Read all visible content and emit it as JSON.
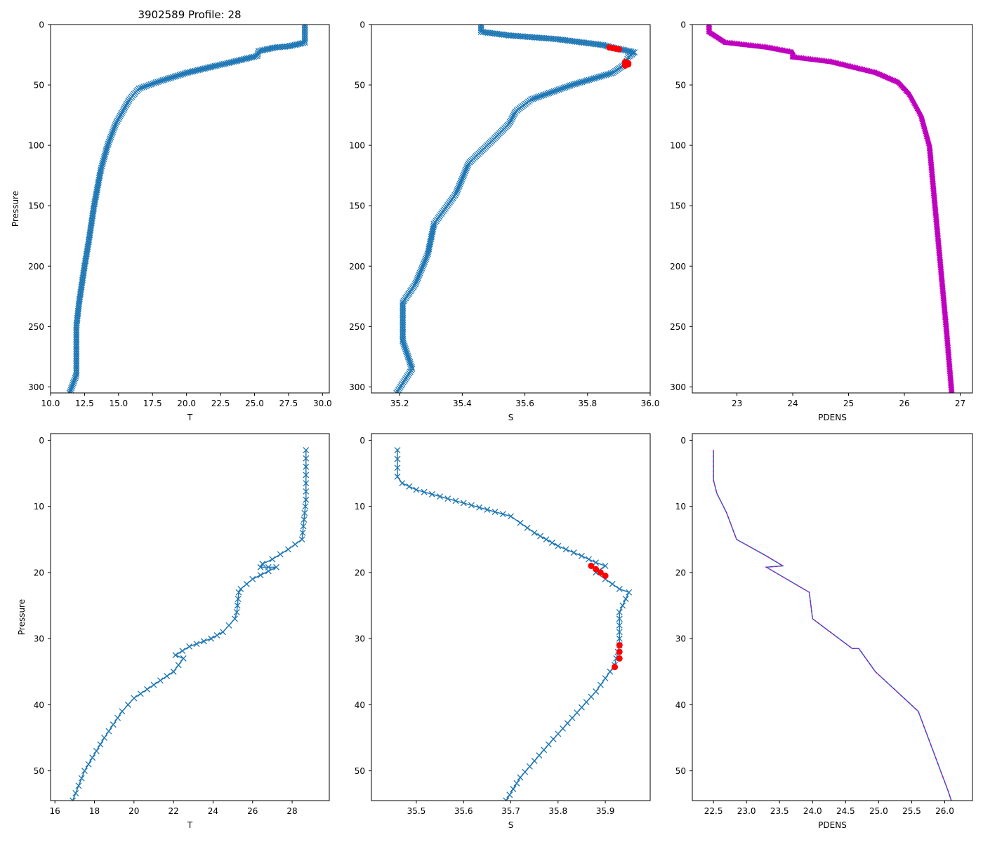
{
  "figure_title": "3902589 Profile: 28",
  "colors": {
    "line": "#1f77b4",
    "flag": "#ff0000",
    "density": "#bf00bf"
  },
  "chart_data": [
    {
      "id": "top-temperature",
      "type": "line",
      "xlabel": "T",
      "ylabel": "Pressure",
      "xlim": [
        10.0,
        30.5
      ],
      "ylim": [
        305,
        0
      ],
      "xticks": [
        10.0,
        12.5,
        15.0,
        17.5,
        20.0,
        22.5,
        25.0,
        27.5,
        30.0
      ],
      "xtick_labels": [
        "10.0",
        "12.5",
        "15.0",
        "17.5",
        "20.0",
        "22.5",
        "25.0",
        "27.5",
        "30.0"
      ],
      "yticks": [
        0,
        50,
        100,
        150,
        200,
        250,
        300
      ],
      "ytick_labels": [
        "0",
        "50",
        "100",
        "150",
        "200",
        "250",
        "300"
      ],
      "series": [
        {
          "name": "T",
          "marker": "x",
          "dense": true,
          "points": [
            [
              28.7,
              0
            ],
            [
              28.7,
              15
            ],
            [
              27.5,
              18
            ],
            [
              26.5,
              19
            ],
            [
              25.3,
              22
            ],
            [
              25.2,
              26
            ],
            [
              23.0,
              32
            ],
            [
              22.2,
              34
            ],
            [
              20.0,
              40
            ],
            [
              18.0,
              47
            ],
            [
              16.5,
              53
            ],
            [
              15.8,
              62
            ],
            [
              15.3,
              72
            ],
            [
              14.8,
              82
            ],
            [
              14.2,
              100
            ],
            [
              13.7,
              120
            ],
            [
              13.2,
              150
            ],
            [
              12.8,
              180
            ],
            [
              12.5,
              200
            ],
            [
              12.1,
              230
            ],
            [
              11.9,
              250
            ],
            [
              11.9,
              290
            ],
            [
              11.4,
              305
            ]
          ]
        }
      ]
    },
    {
      "id": "top-salinity",
      "type": "line",
      "xlabel": "S",
      "ylabel": "",
      "xlim": [
        35.11,
        36.0
      ],
      "ylim": [
        305,
        0
      ],
      "xticks": [
        35.2,
        35.4,
        35.6,
        35.8,
        36.0
      ],
      "xtick_labels": [
        "35.2",
        "35.4",
        "35.6",
        "35.8",
        "36.0"
      ],
      "yticks": [
        0,
        50,
        100,
        150,
        200,
        250,
        300
      ],
      "ytick_labels": [
        "0",
        "50",
        "100",
        "150",
        "200",
        "250",
        "300"
      ],
      "series": [
        {
          "name": "S",
          "marker": "x",
          "dense": true,
          "points": [
            [
              35.46,
              0
            ],
            [
              35.46,
              6
            ],
            [
              35.55,
              9
            ],
            [
              35.7,
              12
            ],
            [
              35.85,
              17
            ],
            [
              35.88,
              19
            ],
            [
              35.95,
              23
            ],
            [
              35.93,
              27
            ],
            [
              35.92,
              33
            ],
            [
              35.88,
              40
            ],
            [
              35.75,
              50
            ],
            [
              35.62,
              62
            ],
            [
              35.57,
              72
            ],
            [
              35.55,
              82
            ],
            [
              35.5,
              95
            ],
            [
              35.42,
              115
            ],
            [
              35.38,
              140
            ],
            [
              35.31,
              165
            ],
            [
              35.29,
              190
            ],
            [
              35.25,
              215
            ],
            [
              35.21,
              230
            ],
            [
              35.21,
              262
            ],
            [
              35.24,
              285
            ],
            [
              35.19,
              305
            ]
          ]
        },
        {
          "name": "flagged",
          "marker": "o",
          "color_key": "flag",
          "points": [
            [
              35.87,
              19
            ],
            [
              35.88,
              19.5
            ],
            [
              35.89,
              20
            ],
            [
              35.9,
              20.5
            ],
            [
              35.92,
              31
            ],
            [
              35.93,
              32
            ],
            [
              35.93,
              33
            ],
            [
              35.92,
              34
            ]
          ]
        }
      ]
    },
    {
      "id": "top-density",
      "type": "line",
      "xlabel": "PDENS",
      "ylabel": "",
      "xlim": [
        22.2,
        27.22
      ],
      "ylim": [
        305,
        0
      ],
      "xticks": [
        23,
        24,
        25,
        26,
        27
      ],
      "xtick_labels": [
        "23",
        "24",
        "25",
        "26",
        "27"
      ],
      "yticks": [
        0,
        50,
        100,
        150,
        200,
        250,
        300
      ],
      "ytick_labels": [
        "0",
        "50",
        "100",
        "150",
        "200",
        "250",
        "300"
      ],
      "series": [
        {
          "name": "PDENS",
          "marker": "^",
          "color_key": "density",
          "dense": true,
          "points": [
            [
              22.5,
              0
            ],
            [
              22.5,
              6
            ],
            [
              22.6,
              9
            ],
            [
              22.8,
              15
            ],
            [
              23.55,
              19
            ],
            [
              24.0,
              23
            ],
            [
              24.0,
              27
            ],
            [
              24.7,
              31
            ],
            [
              25.5,
              40
            ],
            [
              25.9,
              48
            ],
            [
              26.1,
              58
            ],
            [
              26.3,
              75
            ],
            [
              26.45,
              100
            ],
            [
              26.55,
              150
            ],
            [
              26.65,
              200
            ],
            [
              26.75,
              250
            ],
            [
              26.85,
              305
            ]
          ]
        }
      ]
    },
    {
      "id": "bottom-temperature",
      "type": "line",
      "xlabel": "T",
      "ylabel": "Pressure",
      "xlim": [
        15.78,
        29.88
      ],
      "ylim": [
        54.5,
        -1
      ],
      "xticks": [
        16,
        18,
        20,
        22,
        24,
        26,
        28
      ],
      "xtick_labels": [
        "16",
        "18",
        "20",
        "22",
        "24",
        "26",
        "28"
      ],
      "yticks": [
        0,
        10,
        20,
        30,
        40,
        50
      ],
      "ytick_labels": [
        "0",
        "10",
        "20",
        "30",
        "40",
        "50"
      ],
      "series": [
        {
          "name": "T",
          "marker": "x",
          "points": [
            [
              28.7,
              1.5
            ],
            [
              28.7,
              9
            ],
            [
              28.6,
              12
            ],
            [
              28.5,
              15
            ],
            [
              27.8,
              16.5
            ],
            [
              27.0,
              18
            ],
            [
              26.5,
              18.7
            ],
            [
              26.4,
              19.2
            ],
            [
              27.2,
              19.2
            ],
            [
              26.0,
              21
            ],
            [
              25.4,
              22.5
            ],
            [
              25.3,
              23
            ],
            [
              25.2,
              26
            ],
            [
              25.1,
              27
            ],
            [
              24.5,
              29
            ],
            [
              23.9,
              30
            ],
            [
              22.8,
              31.2
            ],
            [
              22.1,
              32.5
            ],
            [
              22.5,
              33
            ],
            [
              22.0,
              35
            ],
            [
              21.0,
              37
            ],
            [
              20.0,
              39
            ],
            [
              19.4,
              41
            ],
            [
              18.5,
              45
            ],
            [
              17.5,
              50
            ],
            [
              16.9,
              54.5
            ]
          ]
        }
      ]
    },
    {
      "id": "bottom-salinity",
      "type": "line",
      "xlabel": "S",
      "ylabel": "",
      "xlim": [
        35.405,
        35.995
      ],
      "ylim": [
        54.5,
        -1
      ],
      "xticks": [
        35.5,
        35.6,
        35.7,
        35.8,
        35.9
      ],
      "xtick_labels": [
        "35.5",
        "35.6",
        "35.7",
        "35.8",
        "35.9"
      ],
      "yticks": [
        0,
        10,
        20,
        30,
        40,
        50
      ],
      "ytick_labels": [
        "0",
        "10",
        "20",
        "30",
        "40",
        "50"
      ],
      "series": [
        {
          "name": "S",
          "marker": "x",
          "points": [
            [
              35.46,
              1.5
            ],
            [
              35.46,
              5.5
            ],
            [
              35.47,
              6.5
            ],
            [
              35.5,
              7.5
            ],
            [
              35.55,
              8.5
            ],
            [
              35.6,
              9.5
            ],
            [
              35.65,
              10.5
            ],
            [
              35.7,
              11.5
            ],
            [
              35.72,
              12.5
            ],
            [
              35.75,
              14
            ],
            [
              35.8,
              16
            ],
            [
              35.85,
              17.5
            ],
            [
              35.88,
              18.5
            ],
            [
              35.9,
              19
            ],
            [
              35.88,
              20
            ],
            [
              35.9,
              21
            ],
            [
              35.93,
              22.5
            ],
            [
              35.95,
              23
            ],
            [
              35.93,
              26
            ],
            [
              35.93,
              28
            ],
            [
              35.93,
              31
            ],
            [
              35.92,
              34
            ],
            [
              35.91,
              35
            ],
            [
              35.88,
              38
            ],
            [
              35.83,
              42
            ],
            [
              35.78,
              46
            ],
            [
              35.72,
              51
            ],
            [
              35.69,
              54.5
            ]
          ]
        },
        {
          "name": "flagged",
          "marker": "o",
          "color_key": "flag",
          "points": [
            [
              35.87,
              19
            ],
            [
              35.88,
              19.5
            ],
            [
              35.89,
              20
            ],
            [
              35.9,
              20.5
            ],
            [
              35.93,
              31
            ],
            [
              35.93,
              32
            ],
            [
              35.93,
              33
            ],
            [
              35.92,
              34.3
            ]
          ]
        }
      ]
    },
    {
      "id": "bottom-density",
      "type": "line",
      "xlabel": "PDENS",
      "ylabel": "",
      "xlim": [
        22.18,
        26.42
      ],
      "ylim": [
        54.5,
        -1
      ],
      "xticks": [
        22.5,
        23.0,
        23.5,
        24.0,
        24.5,
        25.0,
        25.5,
        26.0
      ],
      "xtick_labels": [
        "22.5",
        "23.0",
        "23.5",
        "24.0",
        "24.5",
        "25.0",
        "25.5",
        "26.0"
      ],
      "yticks": [
        0,
        10,
        20,
        30,
        40,
        50
      ],
      "ytick_labels": [
        "0",
        "10",
        "20",
        "30",
        "40",
        "50"
      ],
      "series": [
        {
          "name": "PDENS",
          "marker": "none",
          "overlay_color_key": "density",
          "points": [
            [
              22.5,
              1.5
            ],
            [
              22.5,
              6
            ],
            [
              22.55,
              8
            ],
            [
              22.7,
              11
            ],
            [
              22.85,
              15
            ],
            [
              23.3,
              17.5
            ],
            [
              23.55,
              19
            ],
            [
              23.3,
              19.2
            ],
            [
              23.95,
              23
            ],
            [
              24.0,
              27
            ],
            [
              24.6,
              31.5
            ],
            [
              24.7,
              31.5
            ],
            [
              24.95,
              35
            ],
            [
              25.6,
              41
            ],
            [
              26.05,
              53
            ],
            [
              26.1,
              54.5
            ]
          ]
        }
      ]
    }
  ]
}
